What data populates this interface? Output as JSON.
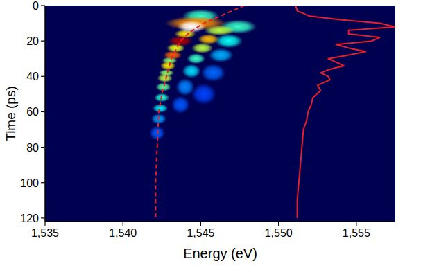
{
  "chart_data": {
    "type": "heatmap",
    "x_label": "Energy (eV)",
    "y_label": "Time (ps)",
    "xlim": [
      1.535,
      1.5575
    ],
    "ylim": [
      0,
      122
    ],
    "xticks": [
      {
        "value": 1.535,
        "label": "1,535"
      },
      {
        "value": 1.54,
        "label": "1,540"
      },
      {
        "value": 1.545,
        "label": "1,545"
      },
      {
        "value": 1.55,
        "label": "1,550"
      },
      {
        "value": 1.555,
        "label": "1,555"
      }
    ],
    "yticks": [
      0,
      20,
      40,
      60,
      80,
      100,
      120
    ],
    "emission": {
      "x": [
        1.545,
        1.5447,
        1.5444,
        1.544,
        1.5437,
        1.5434,
        1.5432,
        1.543,
        1.5429,
        1.5428,
        1.5427,
        1.5426,
        1.5425,
        1.5424,
        1.5423,
        1.5422,
        1.5462,
        1.5455,
        1.5451,
        1.5447,
        1.5444,
        1.544,
        1.5437,
        1.5474,
        1.5468,
        1.5463,
        1.5458,
        1.5452
      ],
      "y": [
        6,
        10,
        12,
        16,
        20,
        24,
        28,
        31,
        34,
        38,
        41,
        46,
        52,
        58,
        64,
        72,
        14,
        19,
        24,
        30,
        37,
        46,
        56,
        12,
        20,
        28,
        38,
        50
      ],
      "intensity": [
        0.35,
        0.7,
        1.0,
        0.6,
        0.95,
        0.55,
        0.75,
        0.45,
        0.6,
        0.45,
        0.5,
        0.4,
        0.33,
        0.27,
        0.18,
        0.1,
        0.5,
        0.65,
        0.5,
        0.35,
        0.25,
        0.15,
        0.1,
        0.35,
        0.3,
        0.2,
        0.12,
        0.08
      ],
      "x_width": [
        0.0012,
        0.002,
        0.0009,
        0.0007,
        0.0008,
        0.0006,
        0.0006,
        0.0005,
        0.0005,
        0.0005,
        0.0005,
        0.0005,
        0.0005,
        0.0005,
        0.0005,
        0.0005,
        0.001,
        0.0007,
        0.0007,
        0.0006,
        0.0006,
        0.0006,
        0.0006,
        0.0012,
        0.0009,
        0.0008,
        0.0008,
        0.0008
      ],
      "y_width": [
        4,
        4,
        3.5,
        2.5,
        3,
        2.5,
        2.5,
        2,
        2.5,
        2,
        2.5,
        2.5,
        2.5,
        2.5,
        3,
        4,
        3,
        3,
        3,
        3,
        4,
        5,
        5,
        4,
        4,
        4,
        5,
        6
      ]
    },
    "series": [
      {
        "type": "line",
        "line_style": "dashed",
        "color": "#e8202a",
        "x": [
          1.5478,
          1.5465,
          1.5452,
          1.5443,
          1.5437,
          1.5431,
          1.5428,
          1.5425,
          1.5423,
          1.5422,
          1.5421,
          1.5421
        ],
        "y": [
          0,
          5,
          10,
          15,
          20,
          30,
          40,
          50,
          60,
          80,
          100,
          120
        ]
      },
      {
        "type": "line",
        "line_style": "solid",
        "color": "#e8202a",
        "x": [
          1.5511,
          1.5512,
          1.552,
          1.554,
          1.5565,
          1.5575,
          1.5545,
          1.5545,
          1.5565,
          1.556,
          1.5537,
          1.5545,
          1.5556,
          1.5545,
          1.5532,
          1.5537,
          1.5542,
          1.5533,
          1.5527,
          1.5532,
          1.5533,
          1.5525,
          1.5527,
          1.5522,
          1.5521,
          1.5519,
          1.5518,
          1.5516,
          1.5515,
          1.5514,
          1.5513,
          1.5512,
          1.5512
        ],
        "y": [
          0,
          3,
          6,
          8,
          10,
          12,
          14,
          16,
          18,
          20,
          22,
          24,
          26,
          28,
          30,
          32,
          34,
          36,
          38,
          40,
          42,
          45,
          48,
          52,
          56,
          60,
          65,
          70,
          80,
          90,
          100,
          110,
          120
        ]
      }
    ]
  }
}
